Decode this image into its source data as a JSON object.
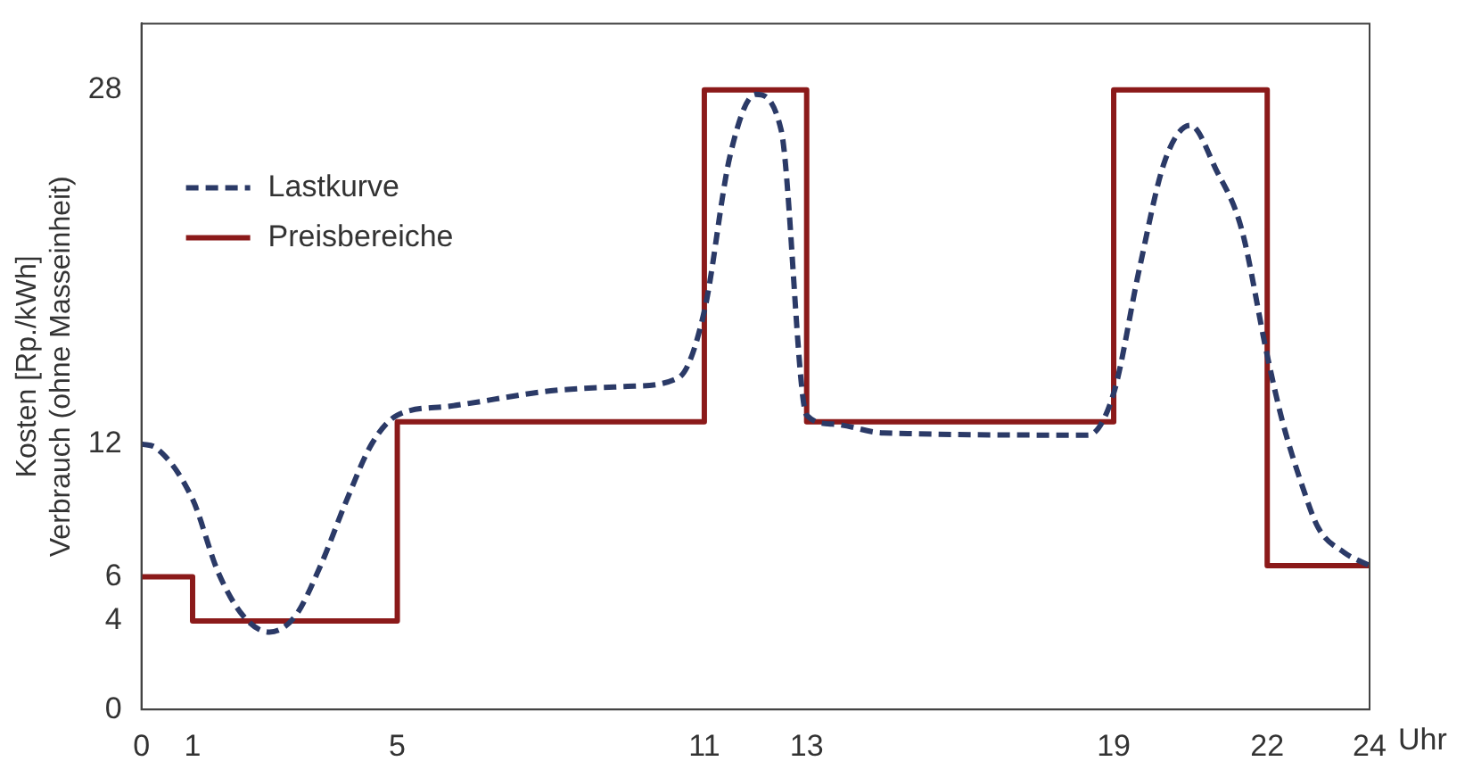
{
  "chart_data": {
    "type": "line",
    "ylabel": "Kosten [Rp./kWh]\nVerbrauch (ohne Masseinheit)",
    "xlabel": "Uhr",
    "xlim": [
      0,
      24
    ],
    "xticks": [
      0,
      1,
      5,
      11,
      13,
      19,
      22,
      24
    ],
    "ylim": [
      0,
      31
    ],
    "yticks": [
      0,
      4,
      6,
      12,
      28
    ],
    "grid": false,
    "legend": "top left",
    "marker": "none",
    "series": [
      {
        "name": "Lastkurve",
        "type": "line",
        "line_style": "dashed",
        "color": "#2b3a67",
        "x": [
          0,
          0.3,
          1,
          1.5,
          2,
          2.5,
          3,
          3.5,
          4,
          4.5,
          5,
          6,
          8,
          9.5,
          10.5,
          11,
          11.5,
          12,
          12.5,
          13,
          13.5,
          14.5,
          18.5,
          19,
          19.5,
          20,
          20.5,
          21,
          21.5,
          22,
          22.3,
          22.7,
          23,
          23.5,
          24
        ],
        "values": [
          12,
          11.8,
          9.5,
          6.2,
          4.2,
          3.5,
          4.2,
          6.5,
          9.4,
          12,
          13.3,
          13.7,
          14.4,
          14.6,
          15,
          18,
          25,
          27.8,
          26.2,
          13.3,
          12.9,
          12.5,
          12.4,
          14.3,
          19.9,
          24.8,
          26.4,
          24.4,
          21.7,
          16,
          13,
          10,
          8.2,
          7.1,
          6.5
        ]
      },
      {
        "name": "Preisbereiche",
        "type": "step",
        "line_style": "solid",
        "color": "#8b1a1a",
        "x": [
          0,
          1,
          5,
          11,
          13,
          19,
          22,
          24
        ],
        "values": [
          6,
          4,
          13,
          28,
          13,
          28,
          6.5,
          6.5
        ]
      }
    ]
  }
}
